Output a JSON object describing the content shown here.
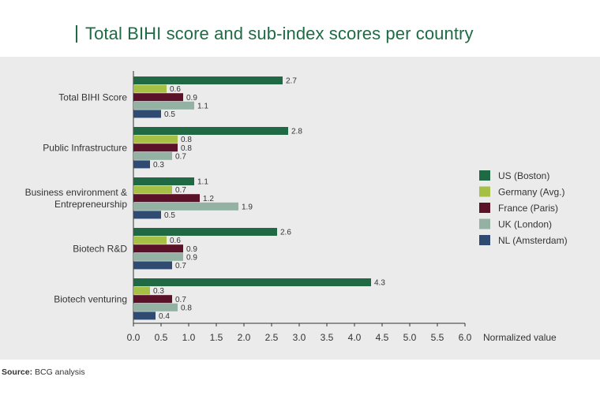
{
  "header": {
    "title": "Total BIHI score and sub-index scores per country"
  },
  "footer": {
    "source_label": "Source:",
    "source_text": "BCG analysis"
  },
  "chart_data": {
    "type": "bar",
    "orientation": "horizontal",
    "title": "Total BIHI score and sub-index scores per country",
    "xlabel": "Normalized value",
    "ylabel": "",
    "xlim": [
      0,
      6
    ],
    "xticks": [
      "0.0",
      "0.5",
      "1.0",
      "1.5",
      "2.0",
      "2.5",
      "3.0",
      "3.5",
      "4.0",
      "4.5",
      "5.0",
      "5.5",
      "6.0"
    ],
    "grid": false,
    "legend_position": "right",
    "categories": [
      [
        "Total BIHI Score"
      ],
      [
        "Public Infrastructure"
      ],
      [
        "Business environment &",
        "Entrepreneurship"
      ],
      [
        "Biotech R&D"
      ],
      [
        "Biotech venturing"
      ]
    ],
    "series": [
      {
        "name": "US (Boston)",
        "color": "#1f6a44",
        "values": [
          2.7,
          2.8,
          1.1,
          2.6,
          4.3
        ]
      },
      {
        "name": "Germany (Avg.)",
        "color": "#a6bf45",
        "values": [
          0.6,
          0.8,
          0.7,
          0.6,
          0.3
        ]
      },
      {
        "name": "France (Paris)",
        "color": "#5b1228",
        "values": [
          0.9,
          0.8,
          1.2,
          0.9,
          0.7
        ]
      },
      {
        "name": "UK (London)",
        "color": "#93b2a4",
        "values": [
          1.1,
          0.7,
          1.9,
          0.9,
          0.8
        ]
      },
      {
        "name": "NL (Amsterdam)",
        "color": "#2f4b72",
        "values": [
          0.5,
          0.3,
          0.5,
          0.7,
          0.4
        ]
      }
    ]
  }
}
